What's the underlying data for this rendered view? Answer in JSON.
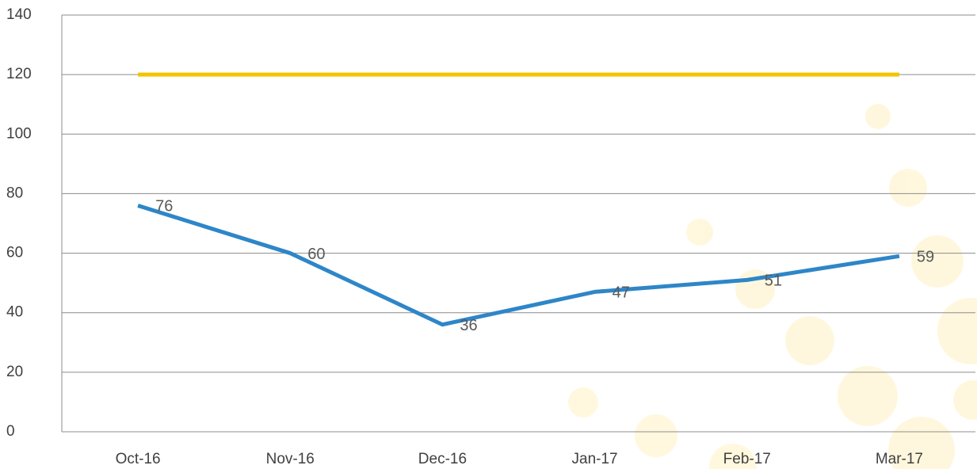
{
  "chart_data": {
    "type": "line",
    "categories": [
      "Oct-16",
      "Nov-16",
      "Dec-16",
      "Jan-17",
      "Feb-17",
      "Mar-17"
    ],
    "series": [
      {
        "color": "#f2c500",
        "values": [
          120,
          120,
          120,
          120,
          120,
          120
        ]
      },
      {
        "color": "#2e86c8",
        "values": [
          76,
          60,
          36,
          47,
          51,
          59
        ],
        "data_labels": true
      }
    ],
    "ylim": [
      0,
      140
    ],
    "yticks": [
      0,
      20,
      40,
      60,
      80,
      100,
      120,
      140
    ],
    "grid": true
  }
}
